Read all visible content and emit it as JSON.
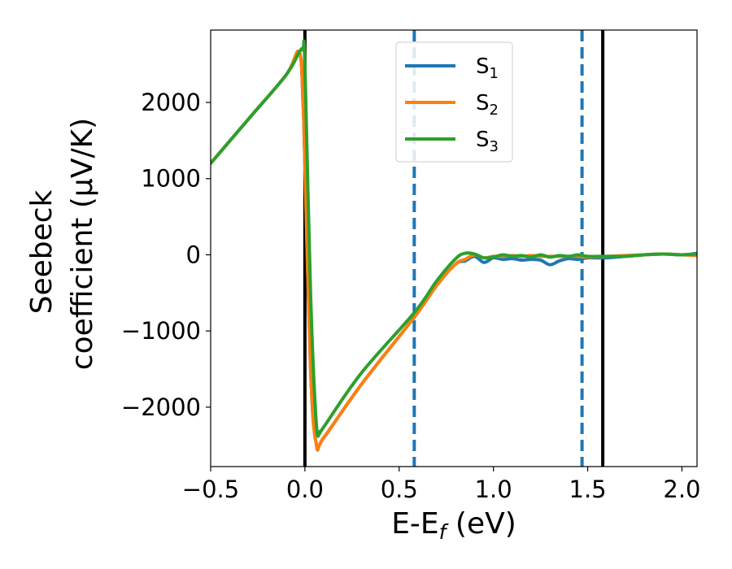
{
  "chart_data": {
    "type": "line",
    "title": "",
    "xlabel": {
      "main": "E-E",
      "sub": "f",
      "unit": " (eV)"
    },
    "ylabel": {
      "line1": "Seebeck",
      "line2": "coefficient  (μV/K)"
    },
    "xlim": [
      -0.5,
      2.08
    ],
    "ylim": [
      -2780,
      2950
    ],
    "xticks": [
      {
        "value": -0.5,
        "label": "−0.5"
      },
      {
        "value": 0.0,
        "label": "0.0"
      },
      {
        "value": 0.5,
        "label": "0.5"
      },
      {
        "value": 1.0,
        "label": "1.0"
      },
      {
        "value": 1.5,
        "label": "1.5"
      },
      {
        "value": 2.0,
        "label": "2.0"
      }
    ],
    "yticks": [
      {
        "value": -2000,
        "label": "−2000"
      },
      {
        "value": -1000,
        "label": "−1000"
      },
      {
        "value": 0,
        "label": "0"
      },
      {
        "value": 1000,
        "label": "1000"
      },
      {
        "value": 2000,
        "label": "2000"
      }
    ],
    "grid": false,
    "legend_position": "top-center",
    "vlines": [
      {
        "x": 0.0,
        "style": "solid",
        "color": "#000000"
      },
      {
        "x": 0.58,
        "style": "dashed",
        "color": "#1f77b4"
      },
      {
        "x": 1.47,
        "style": "dashed",
        "color": "#1f77b4"
      },
      {
        "x": 1.58,
        "style": "solid",
        "color": "#000000"
      }
    ],
    "series": [
      {
        "name": "S",
        "sub": "1",
        "color": "#1f77b4",
        "x": [
          -0.5,
          -0.3,
          -0.1,
          -0.03,
          -0.01,
          0.0,
          0.03,
          0.06,
          0.1,
          0.3,
          0.58,
          0.7,
          0.8,
          0.85,
          0.9,
          0.95,
          1.0,
          1.05,
          1.1,
          1.15,
          1.2,
          1.25,
          1.3,
          1.35,
          1.4,
          1.45,
          1.5,
          1.6,
          1.7,
          1.8,
          1.9,
          2.0,
          2.08
        ],
        "y": [
          1200,
          1780,
          2360,
          2660,
          2000,
          1200,
          -1500,
          -2480,
          -2400,
          -1700,
          -820,
          -400,
          -120,
          -80,
          -20,
          -100,
          -40,
          -60,
          -50,
          -70,
          -60,
          -70,
          -130,
          -80,
          -50,
          -60,
          -40,
          -40,
          -20,
          0,
          10,
          0,
          20
        ]
      },
      {
        "name": "S",
        "sub": "2",
        "color": "#ff7f0e",
        "x": [
          -0.5,
          -0.3,
          -0.1,
          -0.03,
          -0.01,
          0.0,
          0.03,
          0.06,
          0.1,
          0.3,
          0.58,
          0.7,
          0.8,
          0.85,
          0.9,
          0.95,
          1.0,
          1.05,
          1.1,
          1.15,
          1.2,
          1.25,
          1.3,
          1.35,
          1.4,
          1.45,
          1.5,
          1.6,
          1.7,
          1.8,
          1.9,
          2.0,
          2.08
        ],
        "y": [
          1200,
          1780,
          2360,
          2660,
          2000,
          1200,
          -1500,
          -2480,
          -2400,
          -1700,
          -820,
          -400,
          -120,
          -60,
          0,
          -40,
          -20,
          -20,
          -10,
          -20,
          -10,
          -20,
          -20,
          -20,
          -20,
          -20,
          -30,
          -20,
          -10,
          0,
          10,
          0,
          -10
        ]
      },
      {
        "name": "S",
        "sub": "3",
        "color": "#2ca02c",
        "x": [
          -0.5,
          -0.3,
          -0.1,
          -0.03,
          -0.01,
          0.0,
          0.03,
          0.06,
          0.08,
          0.1,
          0.3,
          0.58,
          0.7,
          0.8,
          0.85,
          0.9,
          0.95,
          1.0,
          1.05,
          1.1,
          1.15,
          1.2,
          1.25,
          1.3,
          1.35,
          1.4,
          1.45,
          1.5,
          1.6,
          1.7,
          1.8,
          1.9,
          2.0,
          2.08
        ],
        "y": [
          1200,
          1780,
          2360,
          2660,
          2690,
          2500,
          -500,
          -2200,
          -2320,
          -2260,
          -1550,
          -760,
          -340,
          -50,
          20,
          10,
          -40,
          -30,
          0,
          -20,
          -10,
          -30,
          0,
          -30,
          -10,
          -20,
          0,
          -20,
          -20,
          -20,
          0,
          10,
          0,
          10
        ]
      }
    ]
  }
}
